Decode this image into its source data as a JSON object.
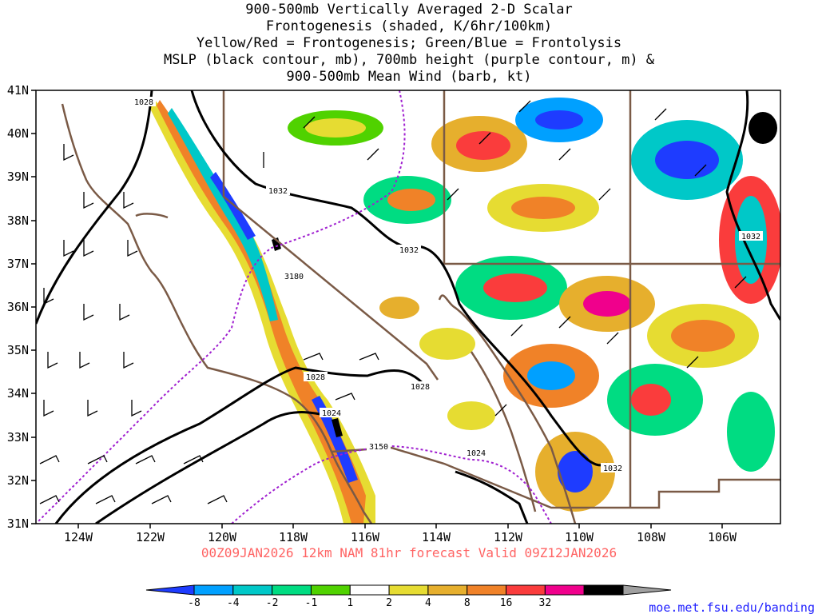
{
  "title": {
    "line1": "900-500mb Vertically Averaged 2-D Scalar",
    "line2": "Frontogenesis (shaded, K/6hr/100km)",
    "line3": "Yellow/Red = Frontogenesis;  Green/Blue = Frontolysis",
    "line4": "MSLP (black contour, mb), 700mb height (purple contour, m) &",
    "line5": "900-500mb Mean Wind (barb, kt)"
  },
  "lat_labels": [
    "41N",
    "40N",
    "39N",
    "38N",
    "37N",
    "36N",
    "35N",
    "34N",
    "33N",
    "32N",
    "31N"
  ],
  "lon_labels": [
    "124W",
    "122W",
    "120W",
    "118W",
    "116W",
    "114W",
    "112W",
    "110W",
    "108W",
    "106W"
  ],
  "contour_labels": [
    "1028",
    "1032",
    "1032",
    "3180",
    "1032",
    "1028",
    "1028",
    "1024",
    "3150",
    "1024",
    "1032"
  ],
  "valid_line": "00Z09JAN2026 12km NAM 81hr forecast Valid 09Z12JAN2026",
  "colorbar": {
    "colors": [
      "#1e3cff",
      "#00a0ff",
      "#00c8c8",
      "#00dc82",
      "#50d200",
      "#ffffff",
      "#e6dc32",
      "#e6af2d",
      "#f08228",
      "#fa3c3c",
      "#f0008c",
      "#000000",
      "#a0a0a0"
    ],
    "labels": [
      "-8",
      "-4",
      "-2",
      "-1",
      "1",
      "2",
      "4",
      "8",
      "16",
      "32"
    ]
  },
  "credit": "moe.met.fsu.edu/banding"
}
